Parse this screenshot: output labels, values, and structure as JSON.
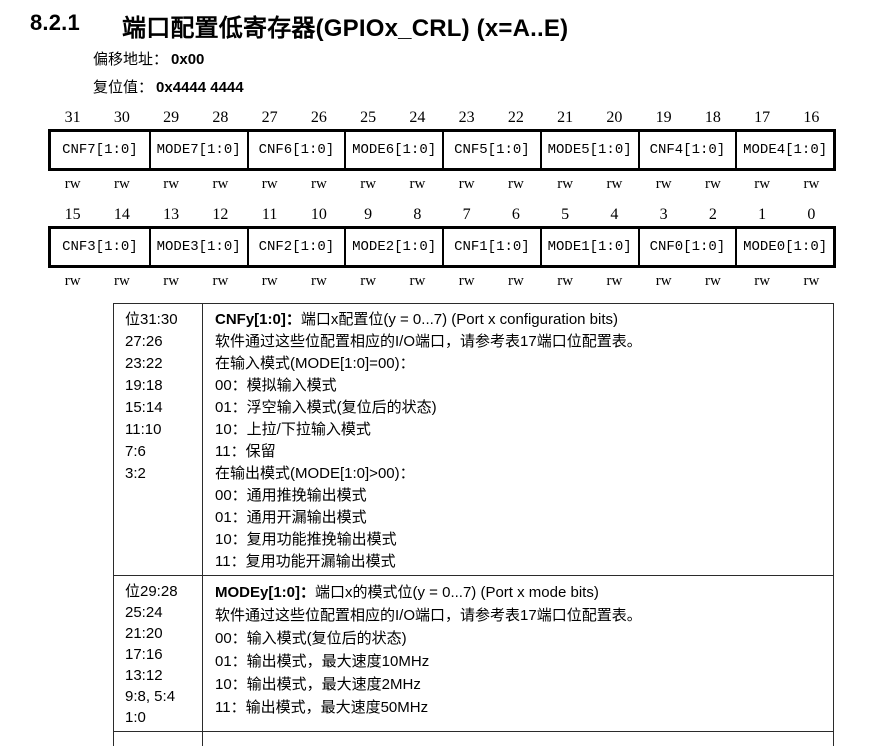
{
  "page": {
    "section_number": "8.2.1",
    "title": "端口配置低寄存器(GPIOx_CRL) (x=A..E)",
    "offset_label": "偏移地址：",
    "offset_value": "0x00",
    "reset_label": "复位值：",
    "reset_value": "0x4444 4444"
  },
  "register": {
    "high": {
      "bit_numbers": [
        "31",
        "30",
        "29",
        "28",
        "27",
        "26",
        "25",
        "24",
        "23",
        "22",
        "21",
        "20",
        "19",
        "18",
        "17",
        "16"
      ],
      "fields": [
        "CNF7[1:0]",
        "MODE7[1:0]",
        "CNF6[1:0]",
        "MODE6[1:0]",
        "CNF5[1:0]",
        "MODE5[1:0]",
        "CNF4[1:0]",
        "MODE4[1:0]"
      ],
      "access": [
        "rw",
        "rw",
        "rw",
        "rw",
        "rw",
        "rw",
        "rw",
        "rw",
        "rw",
        "rw",
        "rw",
        "rw",
        "rw",
        "rw",
        "rw",
        "rw"
      ]
    },
    "low": {
      "bit_numbers": [
        "15",
        "14",
        "13",
        "12",
        "11",
        "10",
        "9",
        "8",
        "7",
        "6",
        "5",
        "4",
        "3",
        "2",
        "1",
        "0"
      ],
      "fields": [
        "CNF3[1:0]",
        "MODE3[1:0]",
        "CNF2[1:0]",
        "MODE2[1:0]",
        "CNF1[1:0]",
        "MODE1[1:0]",
        "CNF0[1:0]",
        "MODE0[1:0]"
      ],
      "access": [
        "rw",
        "rw",
        "rw",
        "rw",
        "rw",
        "rw",
        "rw",
        "rw",
        "rw",
        "rw",
        "rw",
        "rw",
        "rw",
        "rw",
        "rw",
        "rw"
      ]
    }
  },
  "description_rows": [
    {
      "bit_lines": [
        "位31:30",
        "27:26",
        "23:22",
        "19:18",
        "15:14",
        "11:10",
        "7:6",
        "3:2"
      ],
      "term": "CNFy[1:0]：",
      "term_rest": "端口x配置位(y = 0...7) (Port x configuration bits)",
      "lines": [
        "软件通过这些位配置相应的I/O端口，请参考表17端口位配置表。",
        "在输入模式(MODE[1:0]=00)：",
        "00：模拟输入模式",
        "01：浮空输入模式(复位后的状态)",
        "10：上拉/下拉输入模式",
        "11：保留",
        "在输出模式(MODE[1:0]>00)：",
        "00：通用推挽输出模式",
        "01：通用开漏输出模式",
        "10：复用功能推挽输出模式",
        "11：复用功能开漏输出模式"
      ]
    },
    {
      "bit_lines": [
        "位29:28",
        "25:24",
        "21:20",
        "17:16",
        "13:12",
        "9:8, 5:4",
        "1:0"
      ],
      "term": "MODEy[1:0]：",
      "term_rest": "端口x的模式位(y = 0...7) (Port x mode bits)",
      "lines": [
        "软件通过这些位配置相应的I/O端口，请参考表17端口位配置表。",
        "00：输入模式(复位后的状态)",
        "01：输出模式，最大速度10MHz",
        "10：输出模式，最大速度2MHz",
        "11：输出模式，最大速度50MHz"
      ]
    }
  ]
}
